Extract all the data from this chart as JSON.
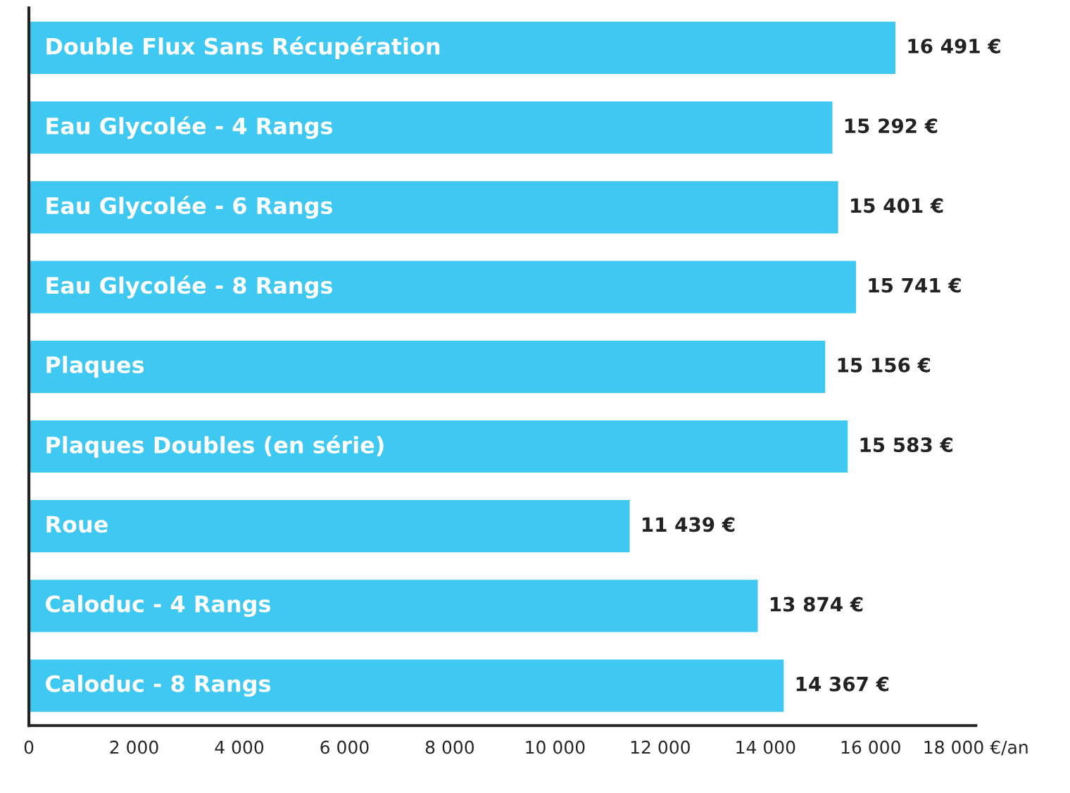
{
  "chart_data": {
    "type": "bar",
    "orientation": "horizontal",
    "categories": [
      "Double Flux Sans Récupération",
      "Eau Glycolée - 4 Rangs",
      "Eau Glycolée - 6 Rangs",
      "Eau Glycolée - 8 Rangs",
      "Plaques",
      "Plaques Doubles (en série)",
      "Roue",
      "Caloduc - 4 Rangs",
      "Caloduc - 8 Rangs"
    ],
    "values": [
      16491,
      15292,
      15401,
      15741,
      15156,
      15583,
      11439,
      13874,
      14367
    ],
    "value_labels": [
      "16 491 €",
      "15 292 €",
      "15 401 €",
      "15 741 €",
      "15 156 €",
      "15 583 €",
      "11 439 €",
      "13 874 €",
      "14 367 €"
    ],
    "color": "#3ec8f2",
    "xlim": [
      0,
      18000
    ],
    "xticks": [
      0,
      {
        "value": 2000,
        "label": "2 000"
      },
      {
        "value": 4000,
        "label": "4 000"
      },
      {
        "value": 6000,
        "label": "6 000"
      },
      {
        "value": 8000,
        "label": "8 000"
      },
      {
        "value": 10000,
        "label": "10 000"
      },
      {
        "value": 12000,
        "label": "12 000"
      },
      {
        "value": 14000,
        "label": "14 000"
      },
      {
        "value": 16000,
        "label": "16 000"
      },
      {
        "value": 18000,
        "label": "18 000 €/an"
      }
    ],
    "grid": false,
    "legend": false
  }
}
